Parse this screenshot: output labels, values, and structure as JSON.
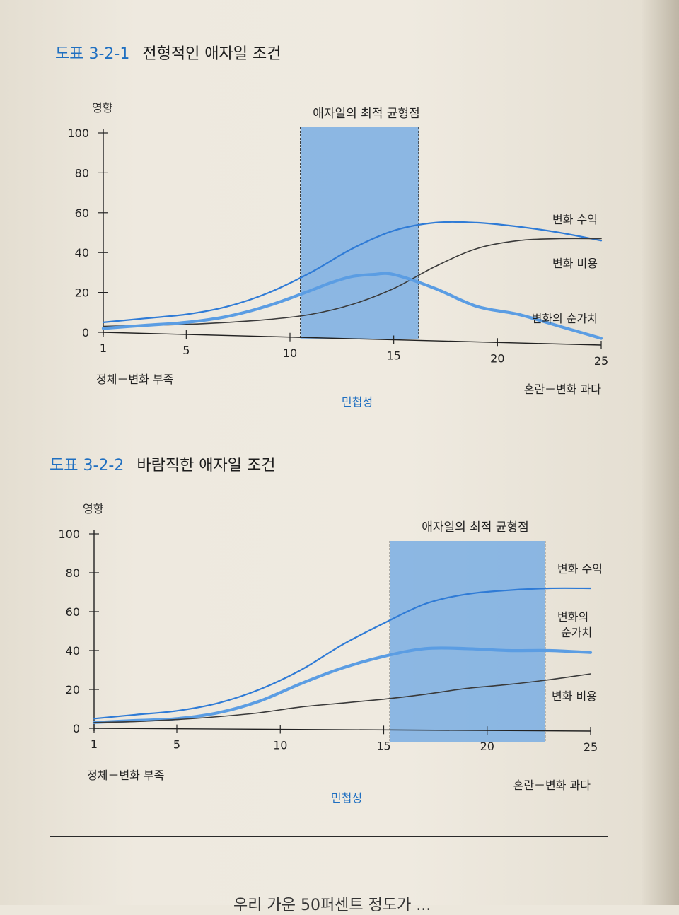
{
  "figures": [
    {
      "number": "도표 3-2-1",
      "title": "전형적인 애자일 조건"
    },
    {
      "number": "도표 3-2-2",
      "title": "바람직한 애자일 조건"
    }
  ],
  "chart_data": [
    {
      "type": "line",
      "ylabel": "영향",
      "xlabel": "민첩성",
      "x_left_label": "정체－변화 부족",
      "x_right_label": "혼란－변화 과다",
      "ylim": [
        0,
        100
      ],
      "yticks": [
        0,
        20,
        40,
        60,
        80,
        100
      ],
      "xlim": [
        1,
        25
      ],
      "xticks": [
        1,
        5,
        10,
        15,
        20,
        25
      ],
      "highlight_band": {
        "label": "애자일의 최적 균형점",
        "x_start": 10.5,
        "x_end": 16.2
      },
      "colors": {
        "revenue": "#2f7bd6",
        "net": "#5b9de3",
        "cost": "#3a3a3a",
        "band": "#7aaee3"
      },
      "series": [
        {
          "name": "변화 수익",
          "x": [
            1,
            3,
            5,
            7,
            9,
            11,
            13,
            15,
            17,
            19,
            21,
            23,
            25
          ],
          "values": [
            5,
            7,
            9,
            13,
            20,
            30,
            42,
            51,
            55,
            55,
            53,
            50,
            46
          ]
        },
        {
          "name": "변화 비용",
          "x": [
            1,
            3,
            5,
            7,
            9,
            11,
            13,
            15,
            17,
            19,
            21,
            23,
            25
          ],
          "values": [
            3,
            3.5,
            4,
            5,
            6.5,
            9,
            14,
            22,
            33,
            42,
            46,
            47,
            47
          ]
        },
        {
          "name": "변화의 순가치",
          "x": [
            1,
            3,
            5,
            7,
            9,
            11,
            12,
            13,
            14,
            15,
            17,
            19,
            21,
            23,
            25
          ],
          "values": [
            2,
            3.5,
            5,
            8,
            13.5,
            21,
            25,
            28,
            29,
            29,
            22,
            13,
            9,
            3,
            -3
          ]
        }
      ]
    },
    {
      "type": "line",
      "ylabel": "영향",
      "xlabel": "민첩성",
      "x_left_label": "정체－변화 부족",
      "x_right_label": "혼란－변화 과다",
      "ylim": [
        0,
        100
      ],
      "yticks": [
        0,
        20,
        40,
        60,
        80,
        100
      ],
      "xlim": [
        1,
        25
      ],
      "xticks": [
        1,
        5,
        10,
        15,
        20,
        25
      ],
      "highlight_band": {
        "label": "애자일의 최적 균형점",
        "x_start": 15.3,
        "x_end": 22.8
      },
      "colors": {
        "revenue": "#2f7bd6",
        "net": "#5b9de3",
        "cost": "#3a3a3a",
        "band": "#7aaee3"
      },
      "series": [
        {
          "name": "변화 수익",
          "x": [
            1,
            3,
            5,
            7,
            9,
            11,
            13,
            15,
            17,
            19,
            21,
            23,
            25
          ],
          "values": [
            5,
            7,
            9,
            13,
            20,
            30,
            43,
            54,
            64,
            69,
            71,
            72,
            72
          ]
        },
        {
          "name": "변화의 순가치",
          "x": [
            1,
            3,
            5,
            7,
            9,
            11,
            13,
            15,
            17,
            19,
            21,
            23,
            25
          ],
          "values": [
            3,
            4,
            5,
            8,
            14,
            23,
            31,
            37,
            41,
            41,
            40,
            40,
            39
          ]
        },
        {
          "name": "변화 비용",
          "x": [
            1,
            3,
            5,
            7,
            9,
            11,
            13,
            15,
            17,
            19,
            21,
            23,
            25
          ],
          "values": [
            3,
            3.5,
            4.5,
            6,
            8,
            11,
            13,
            15,
            17.5,
            20.5,
            22.5,
            25,
            28
          ]
        }
      ]
    }
  ],
  "footer": "우리 가운 50퍼센트 정도가 ..."
}
